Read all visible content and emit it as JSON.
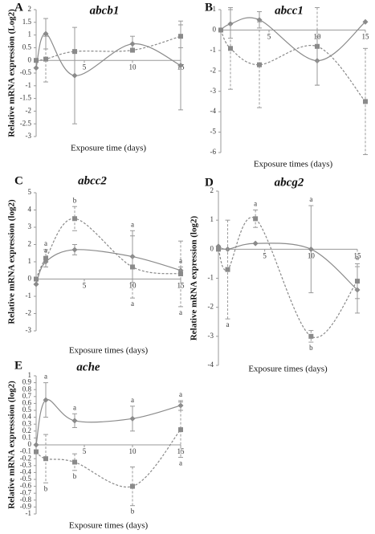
{
  "chart_data": [
    {
      "type": "line",
      "panel_label": "A",
      "title": "abcb1",
      "y_label": "Relative mRNA expression (Log2)",
      "x_label": "Exposure time (days)",
      "x": [
        0,
        1,
        4,
        10,
        15
      ],
      "xlim": [
        0,
        15
      ],
      "xticks": [
        5,
        10,
        15
      ],
      "ylim": [
        -3,
        2
      ],
      "yticks": [
        -3,
        -2.5,
        -2,
        -1.5,
        -1,
        -0.5,
        0,
        0.5,
        1,
        1.5,
        2
      ],
      "series": [
        {
          "line_style": "solid",
          "marker": "diamond",
          "color": "#8a8a8a",
          "values": [
            -0.3,
            1.05,
            -0.6,
            0.65,
            -0.2
          ],
          "errors": [
            null,
            0.6,
            1.9,
            0.3,
            1.75
          ],
          "point_labels": [
            null,
            null,
            null,
            null,
            null
          ]
        },
        {
          "line_style": "dashed",
          "marker": "square",
          "color": "#8a8a8a",
          "values": [
            0,
            0.05,
            0.35,
            0.4,
            0.95
          ],
          "errors": [
            null,
            0.9,
            null,
            null,
            0.45
          ],
          "point_labels": [
            null,
            null,
            null,
            null,
            null
          ]
        }
      ]
    },
    {
      "type": "line",
      "panel_label": "B",
      "title": "abcc1",
      "x_label": "Exposure times (days)",
      "x": [
        0,
        1,
        4,
        10,
        15
      ],
      "xlim": [
        0,
        15
      ],
      "xticks": [
        5,
        10,
        15
      ],
      "ylim": [
        -6,
        1
      ],
      "yticks": [
        -6,
        -5,
        -4,
        -3,
        -2,
        -1,
        0,
        1
      ],
      "series": [
        {
          "line_style": "solid",
          "marker": "diamond",
          "color": "#8a8a8a",
          "values": [
            0,
            0.3,
            0.5,
            -1.5,
            0.4
          ],
          "errors": [
            null,
            0.7,
            0.4,
            1.2,
            null
          ],
          "point_labels": [
            null,
            null,
            null,
            null,
            null
          ]
        },
        {
          "line_style": "dashed",
          "marker": "square",
          "color": "#8a8a8a",
          "values": [
            0,
            -0.9,
            -1.7,
            -0.8,
            -3.5
          ],
          "errors": [
            null,
            2,
            2.1,
            1.9,
            2.6
          ],
          "point_labels": [
            null,
            null,
            null,
            null,
            null
          ]
        }
      ]
    },
    {
      "type": "line",
      "panel_label": "C",
      "title": "abcc2",
      "y_label": "Relative mRNA expression (log2)",
      "x_label": "Exposure times (days)",
      "x": [
        0,
        1,
        4,
        10,
        15
      ],
      "xlim": [
        0,
        15
      ],
      "xticks": [
        5,
        10,
        15
      ],
      "ylim": [
        -3,
        5
      ],
      "yticks": [
        -3,
        -2,
        -1,
        0,
        1,
        2,
        3,
        4,
        5
      ],
      "series": [
        {
          "line_style": "solid",
          "marker": "diamond",
          "color": "#8a8a8a",
          "values": [
            -0.3,
            1,
            1.7,
            1.3,
            0.5
          ],
          "errors": [
            null,
            0.3,
            0.3,
            1.5,
            0.2
          ],
          "point_labels": [
            null,
            "a",
            null,
            "a",
            "a"
          ]
        },
        {
          "line_style": "dashed",
          "marker": "square",
          "color": "#8a8a8a",
          "values": [
            0,
            1.2,
            3.5,
            0.7,
            0.3
          ],
          "errors": [
            null,
            0.5,
            0.7,
            1.8,
            1.9
          ],
          "point_labels": [
            null,
            "a",
            "b",
            "a",
            "a"
          ]
        }
      ]
    },
    {
      "type": "line",
      "panel_label": "D",
      "title": "abcg2",
      "y_label": "Relative mRNA expression (log2)",
      "x_label": "Exposure times (days)",
      "x": [
        0,
        1,
        4,
        10,
        15
      ],
      "xlim": [
        0,
        15
      ],
      "xticks": [
        5,
        10,
        15
      ],
      "ylim": [
        -4,
        2
      ],
      "yticks": [
        -4,
        -3,
        -2,
        -1,
        0,
        1,
        2
      ],
      "series": [
        {
          "line_style": "solid",
          "marker": "diamond",
          "color": "#8a8a8a",
          "values": [
            0.1,
            0,
            0.2,
            0,
            -1.4
          ],
          "errors": [
            null,
            null,
            null,
            1.5,
            0.8
          ],
          "point_labels": [
            null,
            null,
            null,
            "a",
            null
          ]
        },
        {
          "line_style": "dashed",
          "marker": "square",
          "color": "#8a8a8a",
          "values": [
            0,
            -0.7,
            1.05,
            -3,
            -1.1
          ],
          "errors": [
            null,
            1.7,
            0.3,
            0.2,
            0.6
          ],
          "point_labels": [
            null,
            "a",
            "a",
            "b",
            "a"
          ]
        }
      ]
    },
    {
      "type": "line",
      "panel_label": "E",
      "title": "ache",
      "y_label": "Relative mRNA expresssion (log2)",
      "x_label": "Exposure times (days)",
      "x": [
        0,
        1,
        4,
        10,
        15
      ],
      "xlim": [
        0,
        15
      ],
      "xticks": [
        5,
        10,
        15
      ],
      "ylim": [
        -1,
        1
      ],
      "yticks": [
        -1,
        -0.9,
        -0.8,
        -0.7,
        -0.6,
        -0.5,
        -0.4,
        -0.3,
        -0.2,
        -0.1,
        0,
        0.1,
        0.2,
        0.3,
        0.4,
        0.5,
        0.6,
        0.7,
        0.8,
        0.9,
        1
      ],
      "series": [
        {
          "line_style": "solid",
          "marker": "diamond",
          "color": "#8a8a8a",
          "values": [
            0,
            0.65,
            0.35,
            0.38,
            0.57
          ],
          "errors": [
            null,
            0.25,
            0.1,
            0.18,
            0.07
          ],
          "point_labels": [
            null,
            "a",
            "a",
            "a",
            "a"
          ]
        },
        {
          "line_style": "dashed",
          "marker": "square",
          "color": "#8a8a8a",
          "values": [
            -0.1,
            -0.2,
            -0.25,
            -0.6,
            0.22
          ],
          "errors": [
            null,
            0.35,
            0.12,
            0.28,
            0.4
          ],
          "point_labels": [
            null,
            "b",
            "b",
            "b",
            "a"
          ]
        }
      ]
    }
  ]
}
